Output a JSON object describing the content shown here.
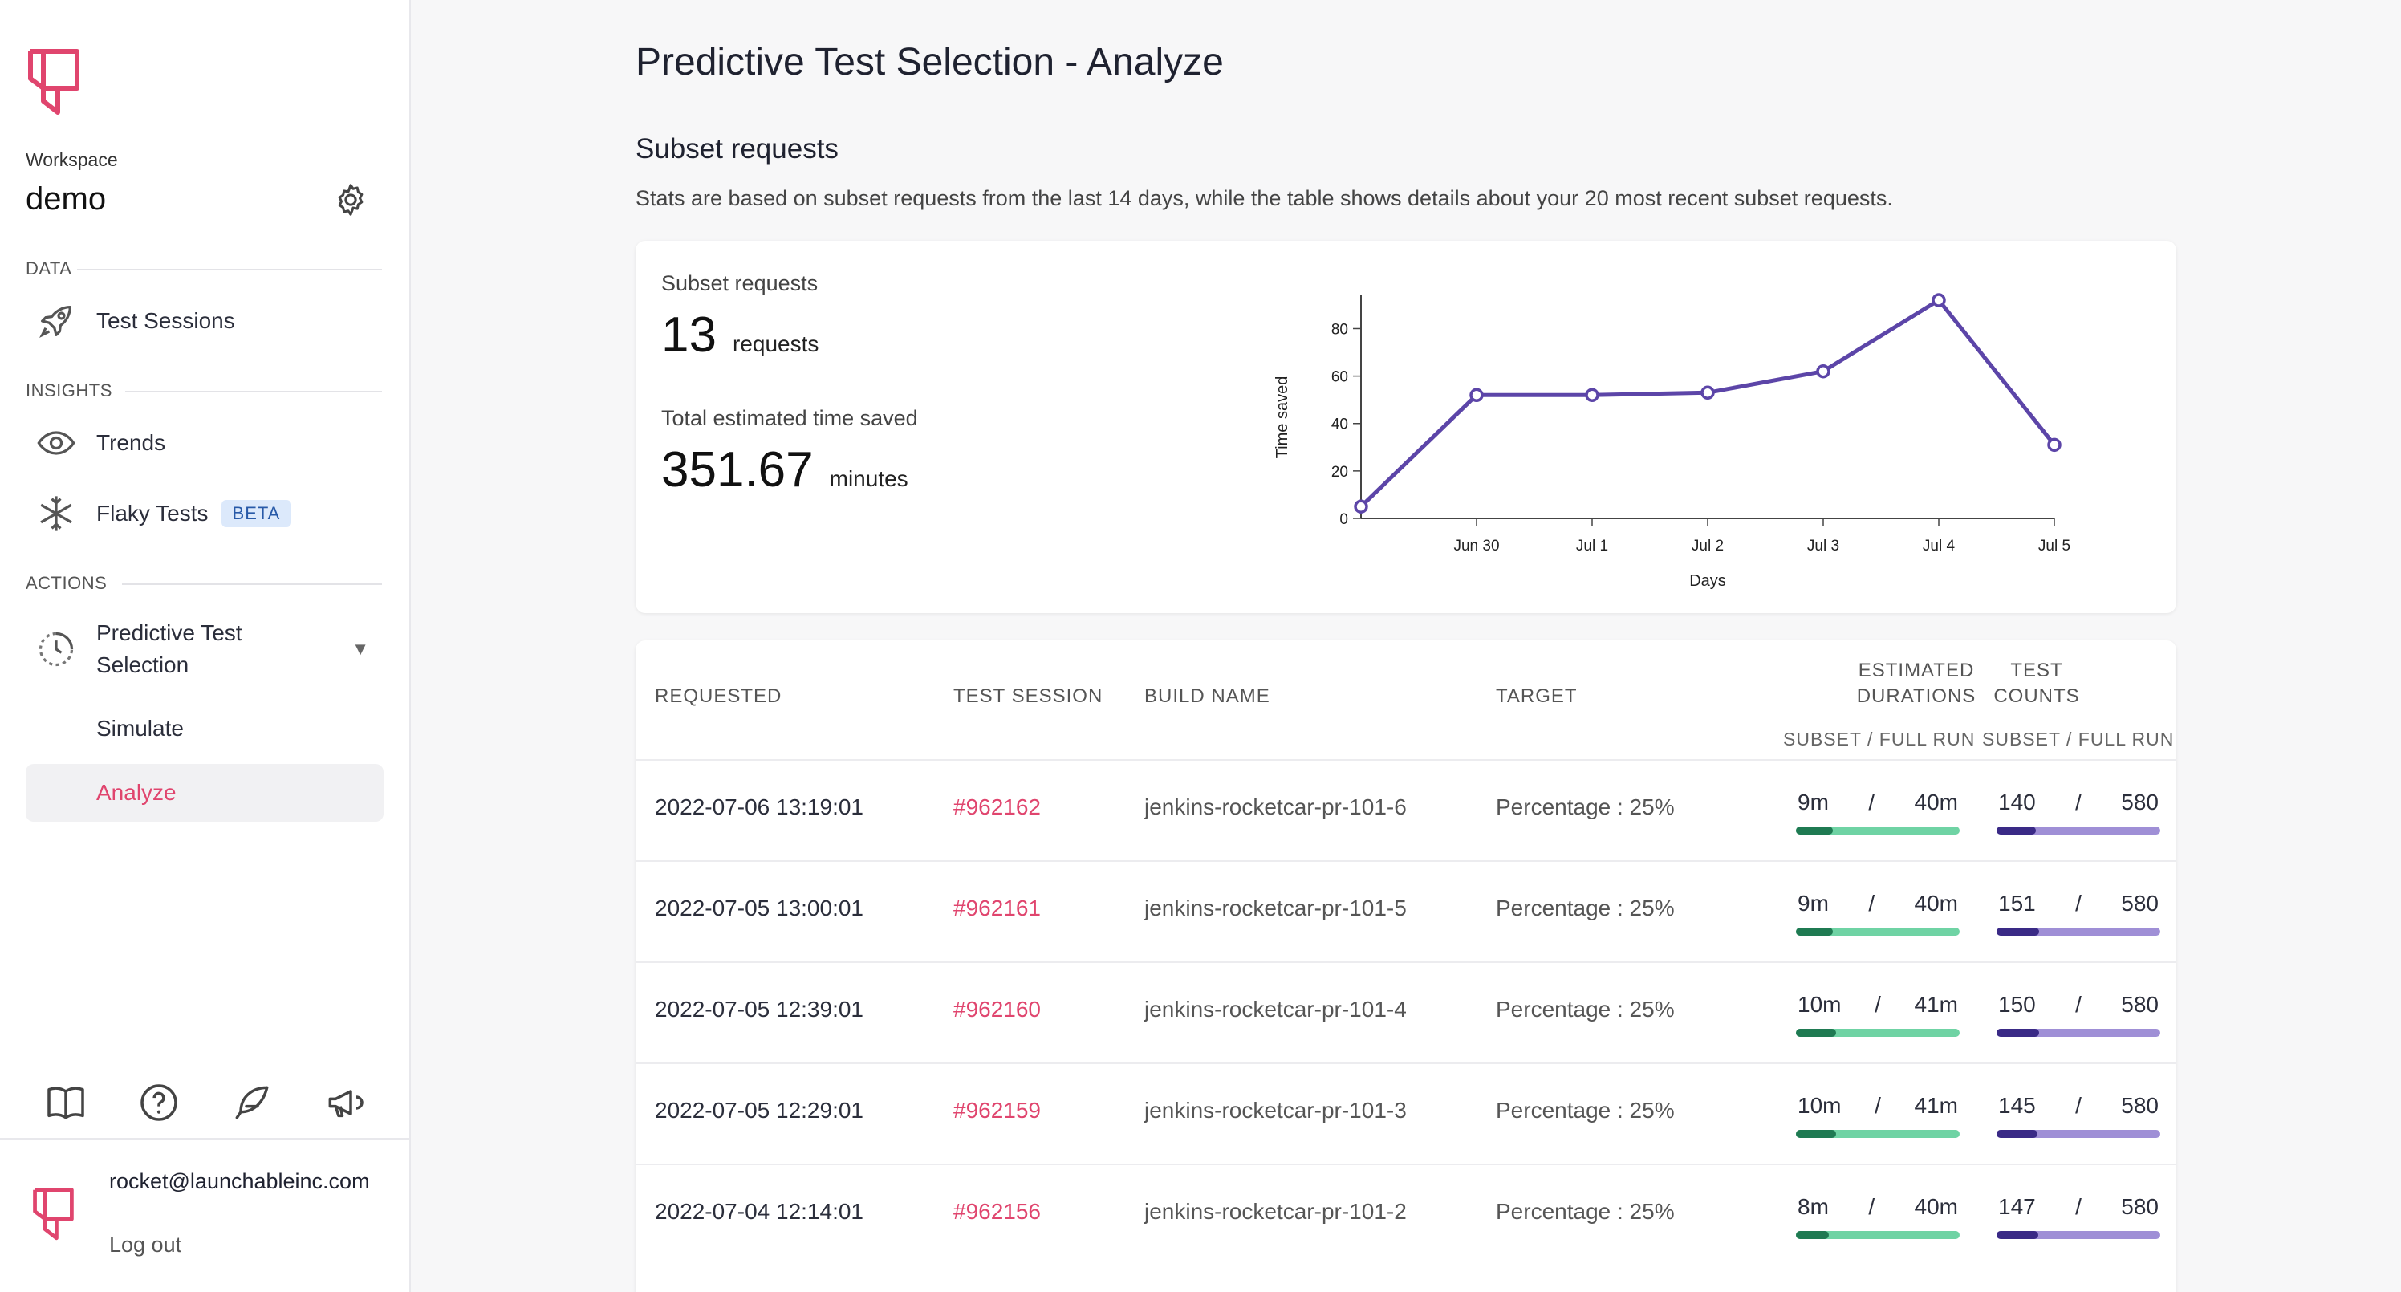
{
  "sidebar": {
    "workspace_label": "Workspace",
    "workspace_name": "demo",
    "sections": {
      "data": "DATA",
      "insights": "INSIGHTS",
      "actions": "ACTIONS"
    },
    "items": {
      "test_sessions": "Test Sessions",
      "trends": "Trends",
      "flaky_tests": "Flaky Tests",
      "flaky_badge": "BETA",
      "pts": "Predictive Test Selection",
      "simulate": "Simulate",
      "analyze": "Analyze"
    },
    "user_email": "rocket@launchableinc.com",
    "logout": "Log out",
    "accent_color": "#e0456e"
  },
  "header": {
    "title": "Predictive Test Selection - Analyze",
    "section_title": "Subset requests",
    "description": "Stats are based on subset requests from the last 14 days, while the table shows details about your 20 most recent subset requests."
  },
  "stats": {
    "requests_label": "Subset requests",
    "requests_value": "13",
    "requests_unit": "requests",
    "time_label": "Total estimated time saved",
    "time_value": "351.67",
    "time_unit": "minutes"
  },
  "chart_data": {
    "type": "line",
    "xlabel": "Days",
    "ylabel": "Time saved",
    "x_ticks": [
      "Jun 30",
      "Jul 1",
      "Jul 2",
      "Jul 3",
      "Jul 4",
      "Jul 5"
    ],
    "y_ticks": [
      0,
      20,
      40,
      60,
      80
    ],
    "ylim": [
      0,
      92
    ],
    "x": [
      "Jun 29",
      "Jun 30",
      "Jul 1",
      "Jul 2",
      "Jul 3",
      "Jul 4",
      "Jul 5"
    ],
    "series": [
      {
        "values": [
          5,
          52,
          52,
          53,
          62,
          92,
          31
        ],
        "color": "#5c45a8"
      }
    ]
  },
  "table": {
    "headers": {
      "requested": "REQUESTED",
      "test_session": "TEST SESSION",
      "build_name": "BUILD NAME",
      "target": "TARGET",
      "durations_1": "ESTIMATED",
      "durations_2": "DURATIONS",
      "counts_1": "TEST",
      "counts_2": "COUNTS",
      "sub_durations": "SUBSET / FULL RUN",
      "sub_counts": "SUBSET / FULL RUN"
    },
    "rows": [
      {
        "requested": "2022-07-06 13:19:01",
        "session": "#962162",
        "build": "jenkins-rocketcar-pr-101-6",
        "target": "Percentage : 25%",
        "dur_subset": "9m",
        "dur_full": "40m",
        "dur_frac": 0.225,
        "cnt_subset": "140",
        "cnt_full": "580",
        "cnt_frac": 0.241
      },
      {
        "requested": "2022-07-05 13:00:01",
        "session": "#962161",
        "build": "jenkins-rocketcar-pr-101-5",
        "target": "Percentage : 25%",
        "dur_subset": "9m",
        "dur_full": "40m",
        "dur_frac": 0.225,
        "cnt_subset": "151",
        "cnt_full": "580",
        "cnt_frac": 0.26
      },
      {
        "requested": "2022-07-05 12:39:01",
        "session": "#962160",
        "build": "jenkins-rocketcar-pr-101-4",
        "target": "Percentage : 25%",
        "dur_subset": "10m",
        "dur_full": "41m",
        "dur_frac": 0.244,
        "cnt_subset": "150",
        "cnt_full": "580",
        "cnt_frac": 0.259
      },
      {
        "requested": "2022-07-05 12:29:01",
        "session": "#962159",
        "build": "jenkins-rocketcar-pr-101-3",
        "target": "Percentage : 25%",
        "dur_subset": "10m",
        "dur_full": "41m",
        "dur_frac": 0.244,
        "cnt_subset": "145",
        "cnt_full": "580",
        "cnt_frac": 0.25
      },
      {
        "requested": "2022-07-04 12:14:01",
        "session": "#962156",
        "build": "jenkins-rocketcar-pr-101-2",
        "target": "Percentage : 25%",
        "dur_subset": "8m",
        "dur_full": "40m",
        "dur_frac": 0.2,
        "cnt_subset": "147",
        "cnt_full": "580",
        "cnt_frac": 0.253
      }
    ]
  },
  "colors": {
    "duration_track": "#6fd3a4",
    "duration_fill": "#1f7a52",
    "count_track": "#9f8fd6",
    "count_fill": "#3a2a86"
  }
}
